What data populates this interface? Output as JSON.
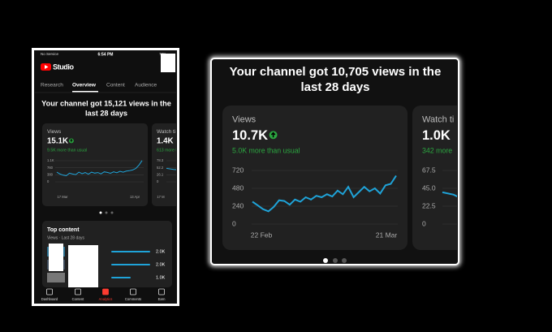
{
  "left_phone": {
    "status_bar": {
      "carrier": "No Service",
      "time": "6:54 PM",
      "battery": "73%"
    },
    "app_name": "Studio",
    "tabs": [
      "Research",
      "Overview",
      "Content",
      "Audience"
    ],
    "active_tab": 1,
    "headline": [
      "Your channel got 15,121 views in the",
      "last 28 days"
    ],
    "views_card": {
      "label": "Views",
      "value": "15.1K",
      "delta": "9.5K more than usual",
      "ylim": [
        0,
        1140
      ],
      "yticks": [
        {
          "value": 1140,
          "label": "1.1K"
        },
        760,
        380,
        0
      ],
      "x_labels": [
        "17 Mar",
        "13 Apr"
      ],
      "values": [
        520,
        420,
        360,
        330,
        470,
        420,
        390,
        520,
        440,
        500,
        410,
        520,
        470,
        500,
        430,
        540,
        510,
        460,
        540,
        490,
        570,
        520,
        580,
        600,
        640,
        720,
        900,
        1150
      ]
    },
    "watch_card": {
      "label": "Watch ti",
      "value": "1.4K",
      "delta": "613 more tha",
      "ylim": [
        0,
        78.3
      ],
      "yticks": [
        78.3,
        52.2,
        26.1,
        0
      ],
      "x_labels": [
        "17 M"
      ],
      "values": [
        50,
        46,
        44,
        52,
        48
      ]
    },
    "top_content": {
      "title": "Top content",
      "subtitle": "Views · Last 28 days",
      "values": [
        2000,
        2000,
        1000
      ],
      "value_labels": [
        "2.0K",
        "2.0K",
        "1.0K"
      ]
    },
    "nav": [
      "Dashboard",
      "Content",
      "Analytics",
      "Comments",
      "Earn"
    ],
    "active_nav": 2
  },
  "right_zoom": {
    "headline": [
      "Your channel got 10,705 views in the",
      "last 28 days"
    ],
    "views_card": {
      "label": "Views",
      "value": "10.7K",
      "delta": "5.0K more than usual",
      "ylim": [
        0,
        720
      ],
      "yticks": [
        720,
        480,
        240,
        0
      ],
      "x_labels": [
        "22 Feb",
        "21 Mar"
      ],
      "values": [
        300,
        250,
        200,
        170,
        230,
        320,
        310,
        260,
        330,
        300,
        360,
        330,
        380,
        360,
        400,
        370,
        450,
        400,
        500,
        360,
        430,
        500,
        440,
        480,
        410,
        520,
        540,
        650
      ]
    },
    "watch_card": {
      "label": "Watch ti",
      "value": "1.0K",
      "delta": "342 more",
      "ylim": [
        0,
        67.5
      ],
      "yticks": [
        67.5,
        {
          "value": 45,
          "label": "45.0"
        },
        22.5,
        0
      ],
      "values": [
        40,
        37,
        30,
        24,
        18
      ]
    },
    "active_dot": 0
  }
}
